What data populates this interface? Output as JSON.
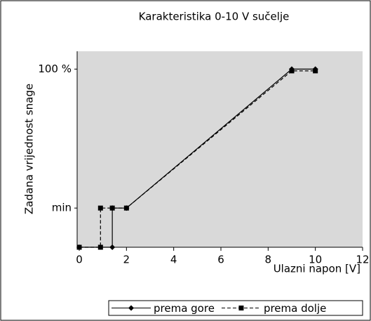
{
  "chart_data": {
    "type": "line",
    "title": "Karakteristika 0-10 V sučelje",
    "xlabel": "Ulazni napon [V]",
    "ylabel": "Zadana vrijednost snage",
    "xlim": [
      0,
      12
    ],
    "xticks": [
      0,
      2,
      4,
      6,
      8,
      10,
      12
    ],
    "ylim": [
      0,
      110
    ],
    "yticks": [
      {
        "value": 22,
        "label": "min"
      },
      {
        "value": 100,
        "label": "100 %"
      }
    ],
    "series": [
      {
        "name": "prema gore",
        "color": "#000000",
        "linestyle": "solid",
        "marker": "diamond",
        "x": [
          0,
          1.4,
          1.4,
          2,
          9,
          10
        ],
        "values": [
          0,
          0,
          22,
          22,
          100,
          100
        ]
      },
      {
        "name": "prema dolje",
        "color": "#000000",
        "linestyle": "dashed",
        "marker": "square",
        "x": [
          0,
          0.9,
          0.9,
          1.4,
          2,
          9,
          10
        ],
        "values": [
          0,
          0,
          22,
          22,
          22,
          99,
          99
        ]
      }
    ],
    "legend": "bottom-right",
    "background": "#d9d9d9"
  }
}
